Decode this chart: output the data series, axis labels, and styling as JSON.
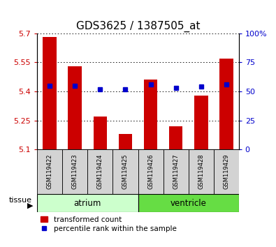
{
  "title": "GDS3625 / 1387505_at",
  "samples": [
    "GSM119422",
    "GSM119423",
    "GSM119424",
    "GSM119425",
    "GSM119426",
    "GSM119427",
    "GSM119428",
    "GSM119429"
  ],
  "red_values": [
    5.68,
    5.53,
    5.27,
    5.18,
    5.46,
    5.22,
    5.38,
    5.57
  ],
  "blue_values": [
    55,
    55,
    52,
    52,
    56,
    53,
    54,
    56
  ],
  "ylim_left": [
    5.1,
    5.7
  ],
  "ylim_right": [
    0,
    100
  ],
  "yticks_left": [
    5.1,
    5.25,
    5.4,
    5.55,
    5.7
  ],
  "yticks_right": [
    0,
    25,
    50,
    75,
    100
  ],
  "ytick_labels_left": [
    "5.1",
    "5.25",
    "5.4",
    "5.55",
    "5.7"
  ],
  "ytick_labels_right": [
    "0",
    "25",
    "50",
    "75",
    "100%"
  ],
  "groups": [
    {
      "label": "atrium",
      "indices": [
        0,
        1,
        2,
        3
      ],
      "color": "#ccffcc"
    },
    {
      "label": "ventricle",
      "indices": [
        4,
        5,
        6,
        7
      ],
      "color": "#66dd44"
    }
  ],
  "bar_color": "#cc0000",
  "dot_color": "#0000cc",
  "baseline": 5.1,
  "bar_width": 0.55,
  "bg_color": "#ffffff",
  "tick_color_left": "#cc0000",
  "tick_color_right": "#0000cc",
  "tissue_label": "tissue",
  "legend_red": "transformed count",
  "legend_blue": "percentile rank within the sample",
  "title_fontsize": 11,
  "axis_fontsize": 8,
  "sample_fontsize": 6,
  "group_fontsize": 8.5
}
